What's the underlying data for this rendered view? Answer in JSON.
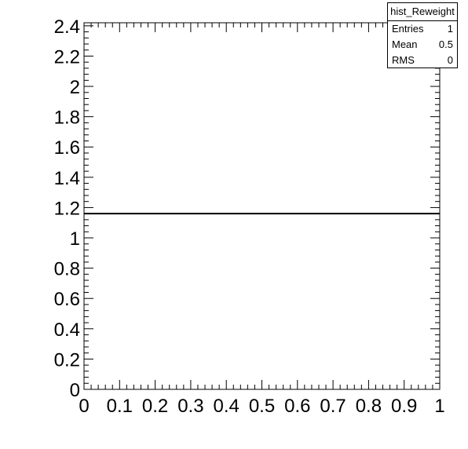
{
  "chart_data": {
    "type": "line",
    "title": "",
    "xlabel": "",
    "ylabel": "",
    "xlim": [
      0,
      1
    ],
    "ylim": [
      0,
      2.42
    ],
    "x_ticks": [
      "0",
      "0.1",
      "0.2",
      "0.3",
      "0.4",
      "0.5",
      "0.6",
      "0.7",
      "0.8",
      "0.9",
      "1"
    ],
    "y_ticks": [
      "0",
      "0.2",
      "0.4",
      "0.6",
      "0.8",
      "1",
      "1.2",
      "1.4",
      "1.6",
      "1.8",
      "2",
      "2.2",
      "2.4"
    ],
    "series": [
      {
        "x": [
          0,
          1
        ],
        "y": [
          1.16,
          1.16
        ],
        "color": "#000000"
      }
    ],
    "grid": false,
    "legend": "none"
  },
  "stats": {
    "name": "hist_Reweight",
    "rows": [
      {
        "label": "Entries",
        "value": "1"
      },
      {
        "label": "Mean",
        "value": "0.5"
      },
      {
        "label": "RMS",
        "value": "0"
      }
    ]
  }
}
